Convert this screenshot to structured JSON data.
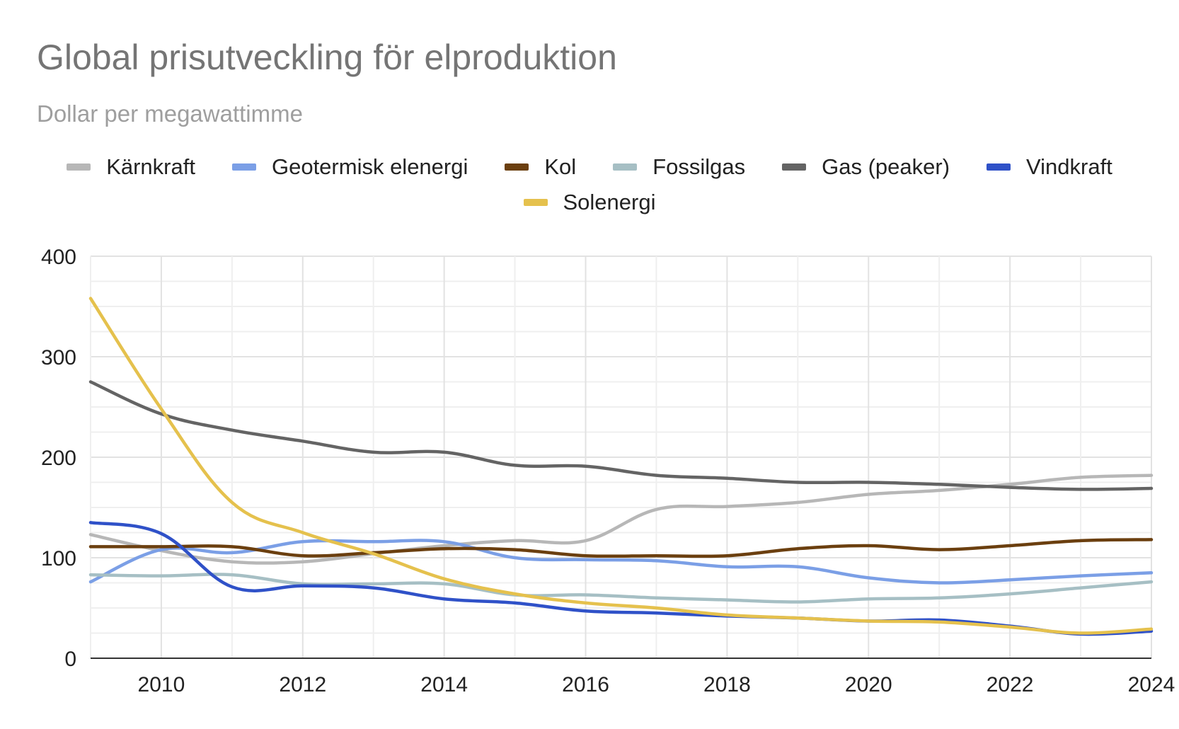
{
  "chart_data": {
    "type": "line",
    "title": "Global prisutveckling för elproduktion",
    "subtitle": "Dollar per megawattimme",
    "xlabel": "",
    "ylabel": "",
    "xlim": [
      2009,
      2024
    ],
    "ylim": [
      0,
      400
    ],
    "x": [
      2009,
      2010,
      2011,
      2012,
      2013,
      2014,
      2015,
      2016,
      2017,
      2018,
      2019,
      2020,
      2021,
      2022,
      2023,
      2024
    ],
    "x_ticks": [
      "2010",
      "2012",
      "2014",
      "2016",
      "2018",
      "2020",
      "2022",
      "2024"
    ],
    "y_ticks": [
      "0",
      "100",
      "200",
      "300",
      "400"
    ],
    "grid": true,
    "legend_position": "top",
    "series": [
      {
        "name": "Kärnkraft",
        "color": "#b7b7b7",
        "values": [
          123,
          107,
          96,
          96,
          104,
          112,
          117,
          117,
          148,
          151,
          155,
          163,
          167,
          173,
          180,
          182
        ]
      },
      {
        "name": "Geotermisk elenergi",
        "color": "#7b9fe6",
        "values": [
          76,
          108,
          105,
          116,
          116,
          116,
          100,
          98,
          97,
          91,
          91,
          80,
          75,
          78,
          82,
          85
        ]
      },
      {
        "name": "Kol",
        "color": "#6b3f0f",
        "values": [
          111,
          111,
          111,
          102,
          105,
          109,
          108,
          102,
          102,
          102,
          109,
          112,
          108,
          112,
          117,
          118
        ]
      },
      {
        "name": "Fossilgas",
        "color": "#a6bfc4",
        "values": [
          83,
          82,
          83,
          74,
          74,
          74,
          63,
          63,
          60,
          58,
          56,
          59,
          60,
          64,
          70,
          76
        ]
      },
      {
        "name": "Gas (peaker)",
        "color": "#646464",
        "values": [
          275,
          243,
          227,
          216,
          205,
          205,
          192,
          191,
          182,
          179,
          175,
          175,
          173,
          170,
          168,
          169
        ]
      },
      {
        "name": "Vindkraft",
        "color": "#2f51c8",
        "values": [
          135,
          124,
          71,
          72,
          70,
          59,
          55,
          47,
          45,
          42,
          40,
          37,
          38,
          32,
          24,
          27
        ]
      },
      {
        "name": "Solenergi",
        "color": "#e5c14d",
        "values": [
          358,
          248,
          155,
          125,
          104,
          79,
          64,
          55,
          50,
          43,
          40,
          37,
          36,
          31,
          25,
          29
        ]
      }
    ]
  }
}
